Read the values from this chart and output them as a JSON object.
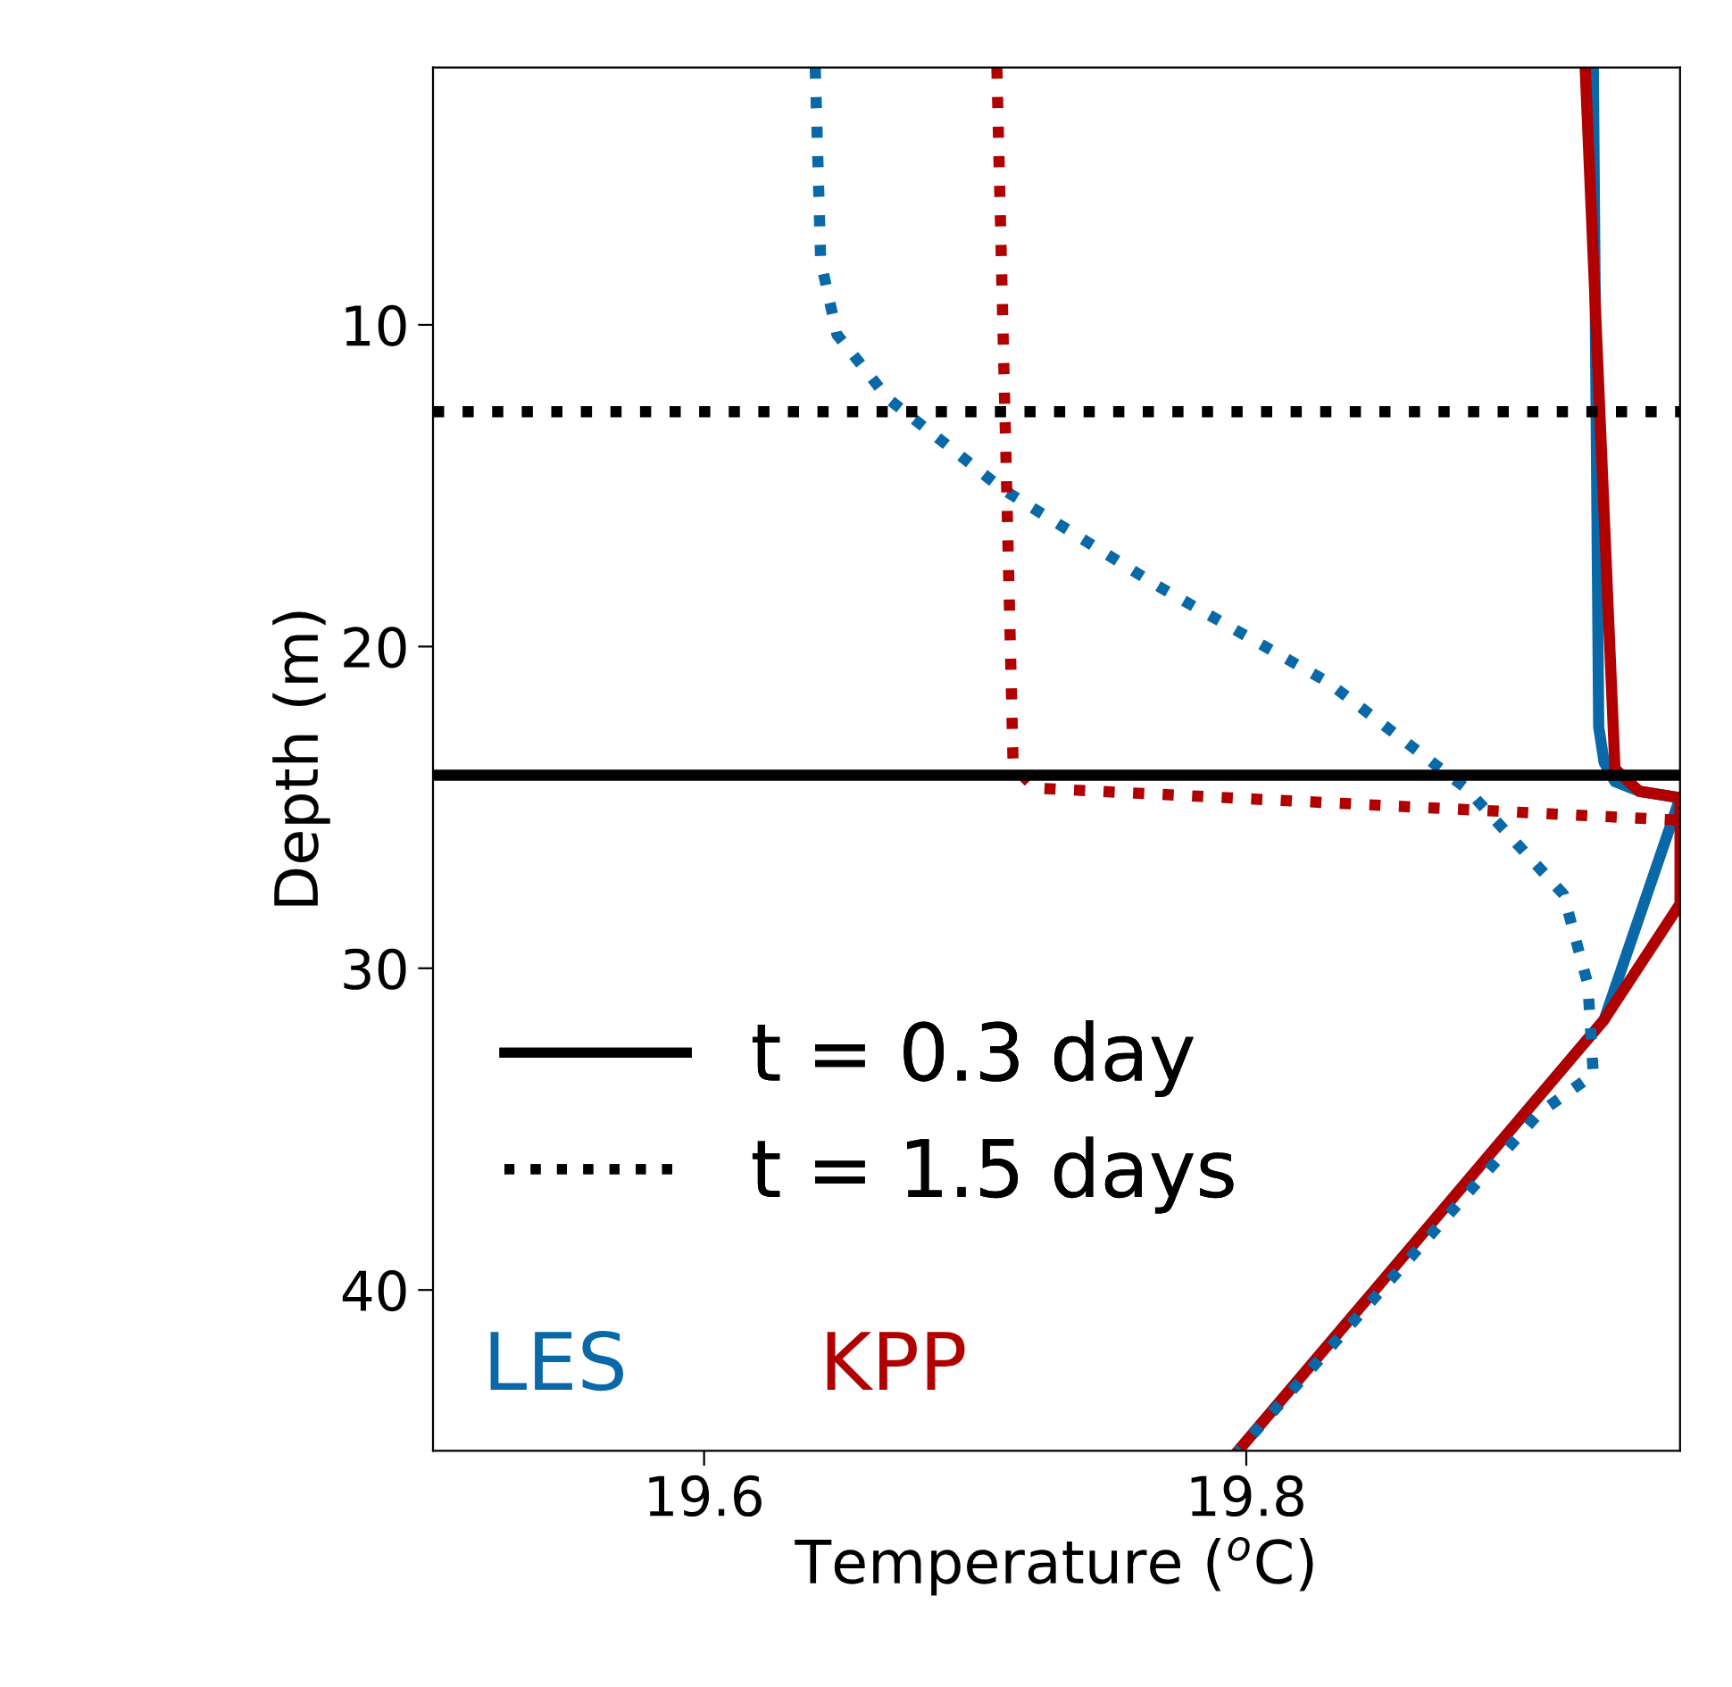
{
  "chart_data": {
    "type": "line",
    "xlabel": "Temperature ($^{o}$C)",
    "ylabel": "Depth (m)",
    "xlim": [
      19.5,
      19.96
    ],
    "xticks": [
      19.6,
      19.8
    ],
    "ylim": [
      45,
      2
    ],
    "yticks": [
      10,
      20,
      30,
      40
    ],
    "grid": false,
    "series": [
      {
        "color": "#0868a8",
        "line_style": "solid",
        "x": [
          19.928,
          19.93,
          19.932,
          19.936,
          19.945,
          19.96,
          19.932,
          19.797
        ],
        "values": [
          2,
          22.5,
          23.6,
          24.2,
          24.5,
          24.7,
          31.6,
          45
        ]
      },
      {
        "color": "#b00000",
        "line_style": "solid",
        "x": [
          19.925,
          19.936,
          19.945,
          19.96,
          19.96,
          19.932,
          19.797
        ],
        "values": [
          2,
          23.8,
          24.5,
          24.7,
          28,
          31.6,
          45
        ]
      },
      {
        "color": "#0868a8",
        "line_style": "dotted",
        "x": [
          19.641,
          19.643,
          19.649,
          19.668,
          19.71,
          19.767,
          19.83,
          19.881,
          19.917,
          19.926,
          19.928,
          19.908,
          19.797
        ],
        "values": [
          2,
          8,
          10.3,
          12.3,
          15.1,
          18.1,
          21.1,
          24.4,
          27.7,
          30.5,
          33.3,
          34.5,
          45
        ]
      },
      {
        "color": "#b00000",
        "line_style": "dotted",
        "x": [
          19.708,
          19.714,
          19.722,
          19.96
        ],
        "values": [
          2,
          23.7,
          24.4,
          25.4
        ]
      }
    ],
    "annotations": [
      "t = 0.3 day",
      "t = 1.5 days",
      "LES",
      "KPP"
    ],
    "ref_lines": [
      {
        "axis": "y",
        "value": 12.7,
        "color": "#000000",
        "line_style": "dotted"
      },
      {
        "axis": "y",
        "value": 24.0,
        "color": "#000000",
        "line_style": "solid"
      }
    ]
  }
}
